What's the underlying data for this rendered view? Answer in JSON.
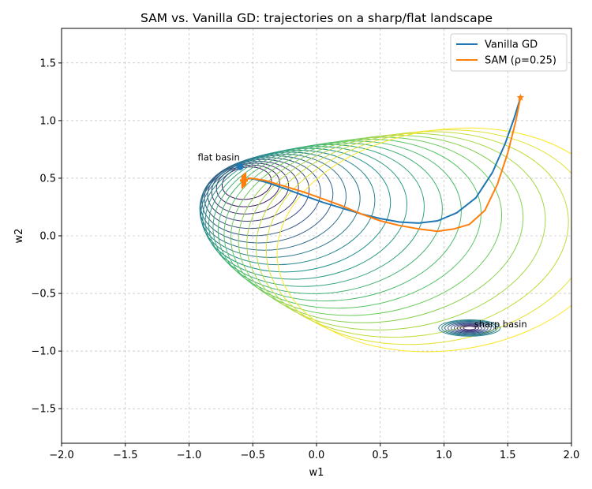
{
  "chart_data": {
    "type": "line",
    "title": "SAM vs. Vanilla GD: trajectories on a sharp/flat landscape",
    "xlabel": "w1",
    "ylabel": "w2",
    "xlim": [
      -2.0,
      2.0
    ],
    "ylim": [
      -1.8,
      1.8
    ],
    "xticks": [
      "−2.0",
      "−1.5",
      "−1.0",
      "−0.5",
      "0.0",
      "0.5",
      "1.0",
      "1.5",
      "2.0"
    ],
    "xtick_values": [
      -2.0,
      -1.5,
      -1.0,
      -0.5,
      0.0,
      0.5,
      1.0,
      1.5,
      2.0
    ],
    "yticks": [
      "−1.5",
      "−1.0",
      "−0.5",
      "0.0",
      "0.5",
      "1.0",
      "1.5"
    ],
    "ytick_values": [
      -1.5,
      -1.0,
      -0.5,
      0.0,
      0.5,
      1.0,
      1.5
    ],
    "grid": true,
    "legend_position": "top-right",
    "series": [
      {
        "name": "Vanilla GD",
        "color": "#1f77b4",
        "x": [
          1.6,
          1.55,
          1.48,
          1.38,
          1.25,
          1.1,
          0.95,
          0.8,
          0.65,
          0.5,
          0.35,
          0.2,
          0.05,
          -0.1,
          -0.25,
          -0.38,
          -0.48,
          -0.54
        ],
        "y": [
          1.2,
          1.02,
          0.8,
          0.55,
          0.33,
          0.2,
          0.13,
          0.11,
          0.12,
          0.15,
          0.19,
          0.24,
          0.29,
          0.35,
          0.41,
          0.46,
          0.49,
          0.5
        ],
        "end_marker": {
          "x": -0.6,
          "y": 0.6
        }
      },
      {
        "name": "SAM (ρ=0.25)",
        "color": "#ff7f0e",
        "x": [
          1.6,
          1.56,
          1.5,
          1.42,
          1.32,
          1.2,
          1.08,
          0.95,
          0.8,
          0.65,
          0.5,
          0.35,
          0.2,
          0.05,
          -0.1,
          -0.25,
          -0.4,
          -0.52,
          -0.57
        ],
        "y": [
          1.2,
          0.98,
          0.72,
          0.45,
          0.22,
          0.1,
          0.06,
          0.04,
          0.06,
          0.09,
          0.13,
          0.19,
          0.26,
          0.32,
          0.38,
          0.43,
          0.48,
          0.5,
          0.48
        ],
        "start_marker": {
          "x": 1.6,
          "y": 1.2
        },
        "jitter_cluster": {
          "x": -0.57,
          "y": 0.48
        }
      }
    ],
    "annotations": [
      {
        "text": "flat basin",
        "x": -0.6,
        "y": 0.6
      },
      {
        "text": "sharp basin",
        "x": 1.2,
        "y": -0.8
      }
    ],
    "contours": {
      "flat_center": [
        -0.55,
        0.48
      ],
      "sharp_center": [
        1.2,
        -0.8
      ],
      "colormap": [
        "#440154",
        "#3b528b",
        "#21918c",
        "#5ec962",
        "#fde725"
      ]
    }
  }
}
